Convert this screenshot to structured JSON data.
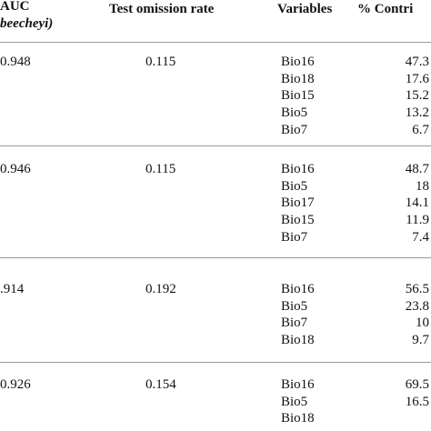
{
  "table": {
    "header": {
      "auc": "AUC",
      "species": "beecheyi)",
      "omission": "Test omission rate",
      "variables": "Variables",
      "contribution": "% Contri"
    },
    "groups": [
      {
        "auc": "0.948",
        "omission": "0.115",
        "rows": [
          [
            "Bio16",
            "47.3"
          ],
          [
            "Bio18",
            "17.6"
          ],
          [
            "Bio15",
            "15.2"
          ],
          [
            "Bio5",
            "13.2"
          ],
          [
            "Bio7",
            "6.7"
          ]
        ]
      },
      {
        "auc": "0.946",
        "omission": "0.115",
        "rows": [
          [
            "Bio16",
            "48.7"
          ],
          [
            "Bio5",
            "18"
          ],
          [
            "Bio17",
            "14.1"
          ],
          [
            "Bio15",
            "11.9"
          ],
          [
            "Bio7",
            "7.4"
          ]
        ]
      },
      {
        "auc": ".914",
        "omission": "0.192",
        "rows": [
          [
            "Bio16",
            "56.5"
          ],
          [
            "Bio5",
            "23.8"
          ],
          [
            "Bio7",
            "10"
          ],
          [
            "Bio18",
            "9.7"
          ]
        ]
      },
      {
        "auc": "0.926",
        "omission": "0.154",
        "rows": [
          [
            "Bio16",
            "69.5"
          ],
          [
            "Bio5",
            "16.5"
          ],
          [
            "Bio18",
            ""
          ]
        ]
      }
    ]
  }
}
